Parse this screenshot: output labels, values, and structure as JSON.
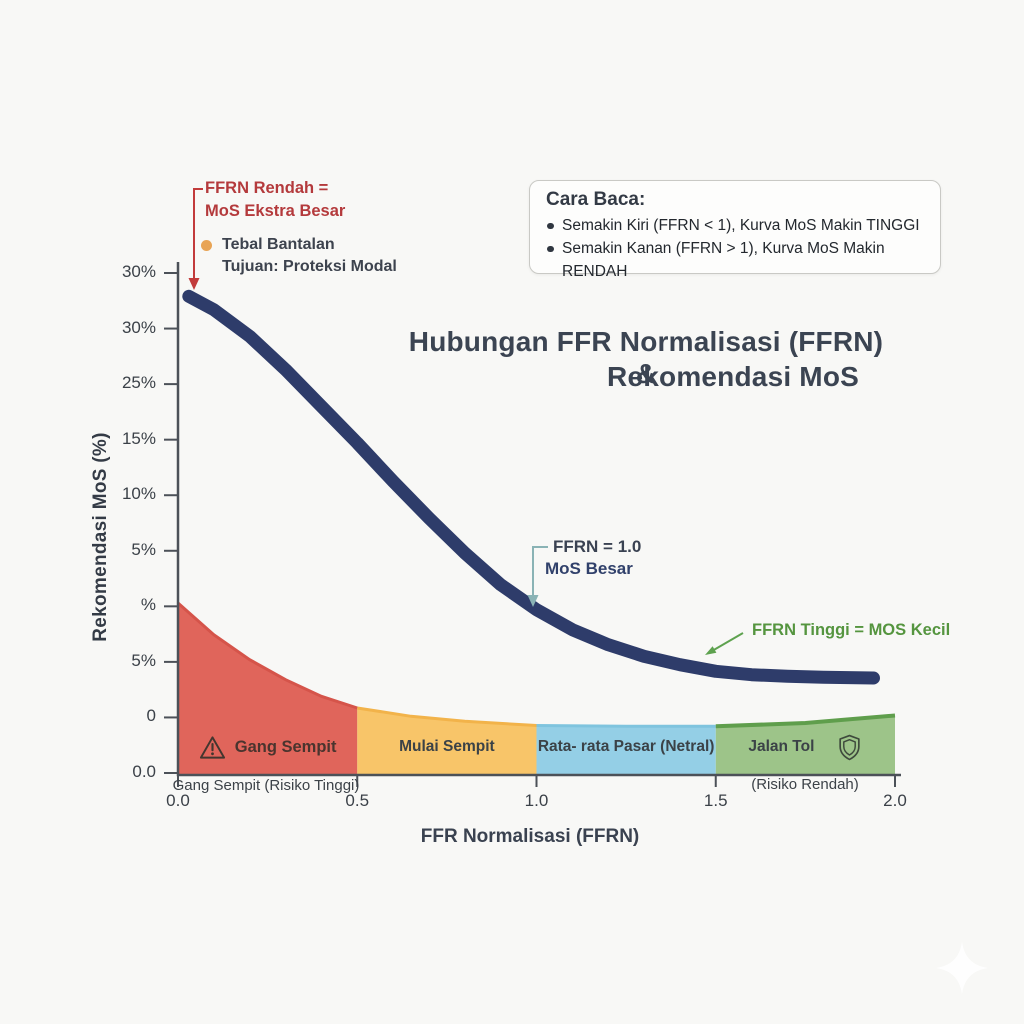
{
  "title": {
    "line1": "Hubungan FFR Normalisasi (FFRN) &",
    "line2": "Rekomendasi MoS"
  },
  "legend_box": {
    "title": "Cara Baca:",
    "items": [
      "Semakin Kiri (FFRN < 1), Kurva MoS Makin TINGGI",
      "Semakin Kanan (FFRN > 1), Kurva MoS Makin RENDAH"
    ]
  },
  "annotations": {
    "low": {
      "line1": "FFRN Rendah =",
      "line2": "MoS Ekstra Besar",
      "color": "#b43a3c"
    },
    "note": {
      "line1": "Tebal Bantalan",
      "line2": "Tujuan: Proteksi Modal",
      "bullet_color": "#e8a455"
    },
    "mid": {
      "line1": "FFRN = 1.0",
      "line2": "MoS Besar",
      "arrow_color": "#8ab3b5"
    },
    "high": {
      "text": "FFRN Tinggi = MOS Kecil",
      "color": "#55953f"
    }
  },
  "axes": {
    "x_title": "FFR Normalisasi (FFRN)",
    "y_title": "Rekomendasi MoS  (%)",
    "x_ticks": [
      "0.0",
      "0.5",
      "1.0",
      "1.5",
      "2.0"
    ],
    "y_ticks": [
      "30%",
      "30%",
      "25%",
      "15%",
      "10%",
      "5%",
      "%",
      "5%",
      "0",
      "0.0"
    ]
  },
  "zone_captions": {
    "left": "Gang Sempit (Risiko Tinggi)",
    "right": "(Risiko Rendah)"
  },
  "colors": {
    "background": "#f8f8f6",
    "axis": "#4c5158",
    "curve": "#2e3c6a",
    "title_text": "#3b4452"
  },
  "chart_data": {
    "type": "line",
    "title": "Hubungan FFR Normalisasi (FFRN) & Rekomendasi MoS",
    "xlabel": "FFR Normalisasi (FFRN)",
    "ylabel": "Rekomendasi MoS (%)",
    "xlim": [
      0,
      2
    ],
    "ylim": [
      0,
      30
    ],
    "x_tick_values": [
      0,
      0.5,
      1.0,
      1.5,
      2.0
    ],
    "grid": false,
    "legend_position": "top-right",
    "series": [
      {
        "name": "Rekomendasi MoS (%)",
        "type": "line",
        "color": "#2e3c6a",
        "width": 13,
        "x": [
          0.03,
          0.1,
          0.2,
          0.3,
          0.4,
          0.5,
          0.6,
          0.7,
          0.8,
          0.9,
          1.0,
          1.1,
          1.2,
          1.3,
          1.4,
          1.5,
          1.6,
          1.7,
          1.8,
          1.94
        ],
        "y": [
          28.6,
          27.8,
          26.2,
          24.2,
          22.0,
          19.8,
          17.5,
          15.3,
          13.2,
          11.3,
          9.8,
          8.6,
          7.7,
          7.0,
          6.5,
          6.1,
          5.9,
          5.8,
          5.75,
          5.7
        ]
      }
    ],
    "zones": [
      {
        "label": "Gang Sempit",
        "icon": "warning",
        "x0": 0.0,
        "x1": 0.5,
        "color": "#e0655b",
        "edge": "#d5544a",
        "label_color": "#4a342e",
        "label_weight": 700,
        "top_profile": [
          [
            0.0,
            10.2
          ],
          [
            0.1,
            8.3
          ],
          [
            0.2,
            6.8
          ],
          [
            0.3,
            5.6
          ],
          [
            0.4,
            4.6
          ],
          [
            0.5,
            3.9
          ]
        ]
      },
      {
        "label": "Mulai Sempit",
        "icon": "",
        "x0": 0.5,
        "x1": 1.0,
        "color": "#f8c569",
        "edge": "#f2b34a",
        "label_color": "#3b4247",
        "label_weight": 600,
        "top_profile": [
          [
            0.5,
            3.9
          ],
          [
            0.65,
            3.4
          ],
          [
            0.8,
            3.1
          ],
          [
            1.0,
            2.85
          ]
        ]
      },
      {
        "label": "Rata- rata Pasar (Netral)",
        "icon": "",
        "x0": 1.0,
        "x1": 1.5,
        "color": "#94cfe6",
        "edge": "#7fc4de",
        "label_color": "#3b4247",
        "label_weight": 600,
        "top_profile": [
          [
            1.0,
            2.85
          ],
          [
            1.25,
            2.8
          ],
          [
            1.5,
            2.8
          ]
        ]
      },
      {
        "label": "Jalan Tol",
        "icon": "shield",
        "x0": 1.5,
        "x1": 2.0,
        "color": "#9dc489",
        "edge": "#5f9e4c",
        "label_color": "#3b4247",
        "label_weight": 600,
        "top_profile": [
          [
            1.5,
            2.8
          ],
          [
            1.75,
            3.0
          ],
          [
            2.0,
            3.45
          ]
        ]
      }
    ],
    "point_annotations": [
      {
        "text": "FFRN Rendah = MoS Ekstra Besar",
        "x": 0.03,
        "y": 28.6
      },
      {
        "text": "FFRN = 1.0, MoS Besar",
        "x": 1.0,
        "y": 9.8
      },
      {
        "text": "FFRN Tinggi = MOS Kecil",
        "x": 1.47,
        "y": 5.9
      }
    ]
  }
}
